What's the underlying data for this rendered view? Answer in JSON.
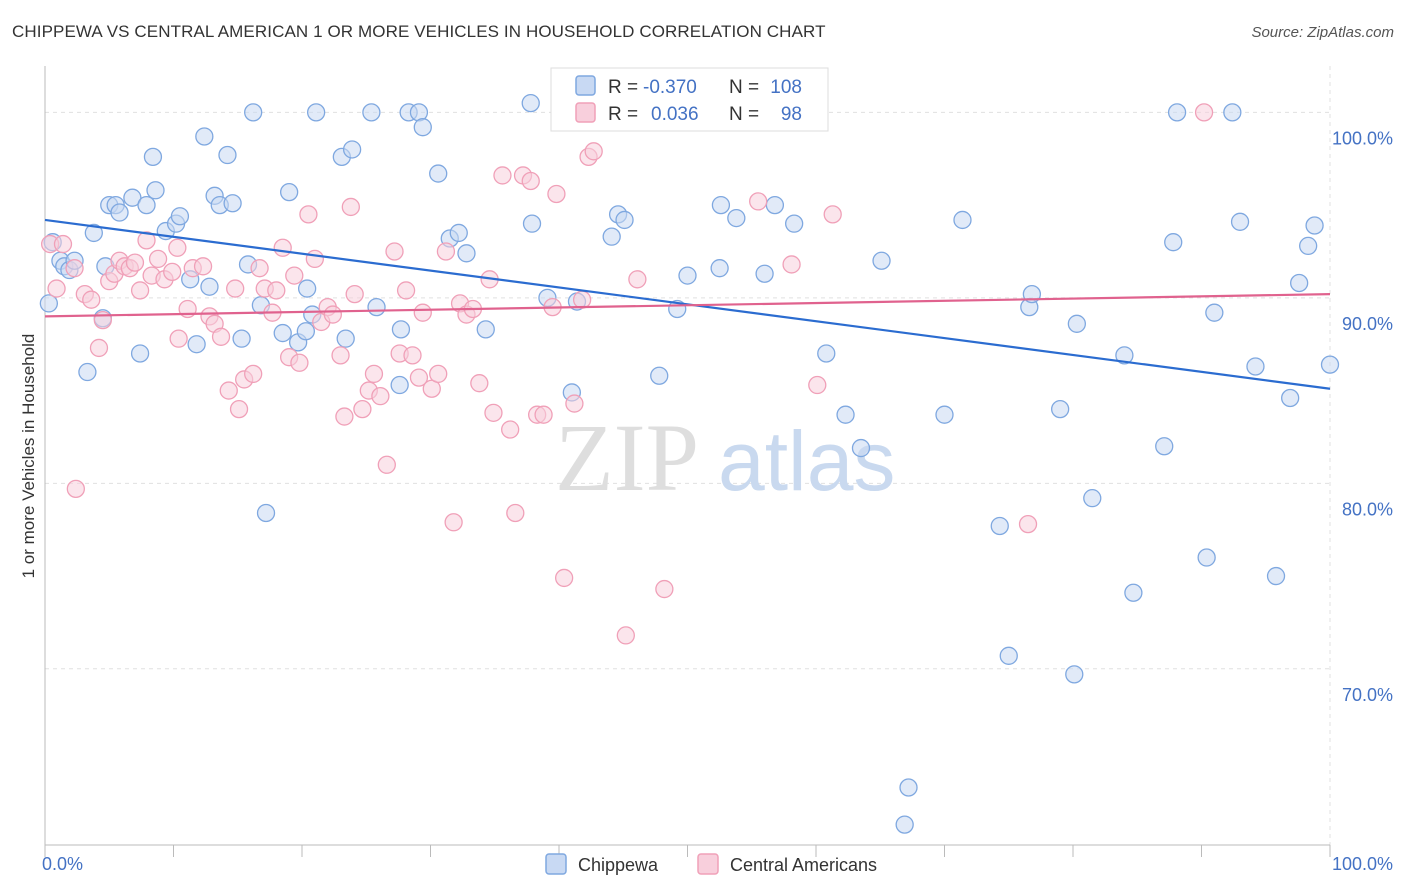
{
  "header": {
    "title": "CHIPPEWA VS CENTRAL AMERICAN 1 OR MORE VEHICLES IN HOUSEHOLD CORRELATION CHART",
    "source": "Source: ZipAtlas.com"
  },
  "watermark": {
    "zip": "ZIP",
    "atlas": "atlas"
  },
  "chart_data": {
    "type": "scatter",
    "title": "CHIPPEWA VS CENTRAL AMERICAN 1 OR MORE VEHICLES IN HOUSEHOLD CORRELATION CHART",
    "ylabel": "1 or more Vehicles in Household",
    "xlim": [
      0,
      100
    ],
    "ylim": [
      60.5,
      102.5
    ],
    "x_tick_labels": [
      "0.0%",
      "100.0%"
    ],
    "y_ticks": [
      {
        "value": 100,
        "label": "100.0%"
      },
      {
        "value": 90,
        "label": "90.0%"
      },
      {
        "value": 80,
        "label": "80.0%"
      },
      {
        "value": 70,
        "label": "70.0%"
      }
    ],
    "grid": true,
    "legend_position": "top-center",
    "legend": {
      "r_label": "R =",
      "n_label": "N =",
      "entries": [
        {
          "series": "Chippewa",
          "r": "-0.370",
          "n": "108"
        },
        {
          "series": "Central Americans",
          "r": "0.036",
          "n": "98"
        }
      ]
    },
    "series": [
      {
        "name": "Chippewa",
        "color": "#7fa8e0",
        "fill": "#c8d9f3",
        "line_color": "#2b6cd0",
        "trend": {
          "x": [
            0,
            100
          ],
          "y": [
            94.2,
            85.1
          ]
        },
        "points": [
          [
            0.3,
            89.7
          ],
          [
            0.6,
            93
          ],
          [
            1.2,
            92
          ],
          [
            1.5,
            91.7
          ],
          [
            1.9,
            91.5
          ],
          [
            2.3,
            92
          ],
          [
            3.3,
            86
          ],
          [
            3.8,
            93.5
          ],
          [
            4.5,
            88.9
          ],
          [
            4.7,
            91.7
          ],
          [
            5,
            95
          ],
          [
            5.5,
            95
          ],
          [
            5.8,
            94.6
          ],
          [
            6.8,
            95.4
          ],
          [
            7.4,
            87
          ],
          [
            7.9,
            95
          ],
          [
            8.4,
            97.6
          ],
          [
            8.6,
            95.8
          ],
          [
            9.4,
            93.6
          ],
          [
            10.2,
            94
          ],
          [
            10.5,
            94.4
          ],
          [
            11.3,
            91
          ],
          [
            11.8,
            87.5
          ],
          [
            12.4,
            98.7
          ],
          [
            12.8,
            90.6
          ],
          [
            13.2,
            95.5
          ],
          [
            13.6,
            95
          ],
          [
            14.2,
            97.7
          ],
          [
            14.6,
            95.1
          ],
          [
            15.3,
            87.8
          ],
          [
            15.8,
            91.8
          ],
          [
            16.2,
            100
          ],
          [
            16.8,
            89.6
          ],
          [
            17.2,
            78.4
          ],
          [
            18.5,
            88.1
          ],
          [
            19,
            95.7
          ],
          [
            19.7,
            87.6
          ],
          [
            20.3,
            88.2
          ],
          [
            20.4,
            90.5
          ],
          [
            20.8,
            89.1
          ],
          [
            21.1,
            100
          ],
          [
            23.1,
            97.6
          ],
          [
            23.4,
            87.8
          ],
          [
            23.9,
            98
          ],
          [
            25.4,
            100
          ],
          [
            25.8,
            89.5
          ],
          [
            27.6,
            85.3
          ],
          [
            27.7,
            88.3
          ],
          [
            28.3,
            100
          ],
          [
            29.1,
            100
          ],
          [
            29.4,
            99.2
          ],
          [
            30.6,
            96.7
          ],
          [
            31.5,
            93.2
          ],
          [
            32.2,
            93.5
          ],
          [
            32.8,
            92.4
          ],
          [
            34.3,
            88.3
          ],
          [
            37.9,
            94
          ],
          [
            39.1,
            90
          ],
          [
            41,
            84.9
          ],
          [
            41.4,
            89.8
          ],
          [
            43,
            99.8
          ],
          [
            44.1,
            93.3
          ],
          [
            44.6,
            94.5
          ],
          [
            45.1,
            94.2
          ],
          [
            47.8,
            85.8
          ],
          [
            49.2,
            89.4
          ],
          [
            50,
            91.2
          ],
          [
            52.5,
            91.6
          ],
          [
            52.6,
            95
          ],
          [
            53.8,
            94.3
          ],
          [
            56,
            91.3
          ],
          [
            56.8,
            95
          ],
          [
            58.3,
            94
          ],
          [
            59.6,
            100
          ],
          [
            60.8,
            87
          ],
          [
            62.3,
            83.7
          ],
          [
            63.5,
            81.9
          ],
          [
            65.1,
            92
          ],
          [
            66.9,
            61.6
          ],
          [
            67.2,
            63.6
          ],
          [
            70,
            83.7
          ],
          [
            71.4,
            94.2
          ],
          [
            74.3,
            77.7
          ],
          [
            75,
            70.7
          ],
          [
            76.6,
            89.5
          ],
          [
            76.8,
            90.2
          ],
          [
            79,
            84
          ],
          [
            80.1,
            69.7
          ],
          [
            80.3,
            88.6
          ],
          [
            81.5,
            79.2
          ],
          [
            84,
            86.9
          ],
          [
            84.7,
            74.1
          ],
          [
            87.1,
            82
          ],
          [
            87.8,
            93
          ],
          [
            88.1,
            100
          ],
          [
            90.4,
            76
          ],
          [
            91,
            89.2
          ],
          [
            92.4,
            100
          ],
          [
            93,
            94.1
          ],
          [
            94.2,
            86.3
          ],
          [
            95.8,
            75
          ],
          [
            96.9,
            84.6
          ],
          [
            97.6,
            90.8
          ],
          [
            98.3,
            92.8
          ],
          [
            98.8,
            93.9
          ],
          [
            100,
            86.4
          ],
          [
            37.8,
            100.5
          ],
          [
            44.8,
            100.8
          ]
        ]
      },
      {
        "name": "Central Americans",
        "color": "#f0a0b8",
        "fill": "#f8cfdc",
        "line_color": "#e0628e",
        "trend": {
          "x": [
            0,
            100
          ],
          "y": [
            89,
            90.2
          ]
        },
        "points": [
          [
            0.4,
            92.9
          ],
          [
            0.9,
            90.5
          ],
          [
            1.4,
            92.9
          ],
          [
            2.3,
            91.6
          ],
          [
            2.4,
            79.7
          ],
          [
            3.1,
            90.2
          ],
          [
            3.6,
            89.9
          ],
          [
            4.2,
            87.3
          ],
          [
            4.5,
            88.8
          ],
          [
            5,
            90.9
          ],
          [
            5.4,
            91.3
          ],
          [
            5.8,
            92
          ],
          [
            6.2,
            91.7
          ],
          [
            6.6,
            91.6
          ],
          [
            7,
            91.9
          ],
          [
            7.4,
            90.4
          ],
          [
            7.9,
            93.1
          ],
          [
            8.3,
            91.2
          ],
          [
            8.8,
            92.1
          ],
          [
            9.3,
            91
          ],
          [
            9.9,
            91.4
          ],
          [
            10.3,
            92.7
          ],
          [
            10.4,
            87.8
          ],
          [
            11.1,
            89.4
          ],
          [
            11.5,
            91.6
          ],
          [
            12.3,
            91.7
          ],
          [
            12.8,
            89
          ],
          [
            13.2,
            88.6
          ],
          [
            13.7,
            87.9
          ],
          [
            14.3,
            85
          ],
          [
            14.8,
            90.5
          ],
          [
            15.1,
            84
          ],
          [
            15.5,
            85.6
          ],
          [
            16.2,
            85.9
          ],
          [
            16.7,
            91.6
          ],
          [
            17.1,
            90.5
          ],
          [
            17.7,
            89.2
          ],
          [
            18,
            90.4
          ],
          [
            18.5,
            92.7
          ],
          [
            19,
            86.8
          ],
          [
            19.4,
            91.2
          ],
          [
            19.8,
            86.5
          ],
          [
            20.5,
            94.5
          ],
          [
            21,
            92.1
          ],
          [
            21.5,
            88.7
          ],
          [
            22,
            89.5
          ],
          [
            22.4,
            89.1
          ],
          [
            23,
            86.9
          ],
          [
            23.3,
            83.6
          ],
          [
            23.8,
            94.9
          ],
          [
            24.1,
            90.2
          ],
          [
            24.7,
            84
          ],
          [
            25.2,
            85
          ],
          [
            25.6,
            85.9
          ],
          [
            26.1,
            84.7
          ],
          [
            26.6,
            81
          ],
          [
            27.2,
            92.5
          ],
          [
            27.6,
            87
          ],
          [
            28.1,
            90.4
          ],
          [
            28.6,
            86.9
          ],
          [
            29.1,
            85.7
          ],
          [
            29.4,
            89.2
          ],
          [
            30.1,
            85.1
          ],
          [
            30.6,
            85.9
          ],
          [
            31.2,
            92.5
          ],
          [
            31.8,
            77.9
          ],
          [
            32.3,
            89.7
          ],
          [
            32.8,
            89.1
          ],
          [
            33.3,
            89.4
          ],
          [
            33.8,
            85.4
          ],
          [
            34.6,
            91
          ],
          [
            34.9,
            83.8
          ],
          [
            35.6,
            96.6
          ],
          [
            36.2,
            82.9
          ],
          [
            36.6,
            78.4
          ],
          [
            37.2,
            96.6
          ],
          [
            37.8,
            96.3
          ],
          [
            38.3,
            83.7
          ],
          [
            38.8,
            83.7
          ],
          [
            39.5,
            89.5
          ],
          [
            39.8,
            95.6
          ],
          [
            40.4,
            74.9
          ],
          [
            41.2,
            84.3
          ],
          [
            41.8,
            89.9
          ],
          [
            42.3,
            97.6
          ],
          [
            42.7,
            97.9
          ],
          [
            45.2,
            71.8
          ],
          [
            46.1,
            91
          ],
          [
            48.2,
            74.3
          ],
          [
            48.5,
            100
          ],
          [
            55.5,
            95.2
          ],
          [
            58.1,
            91.8
          ],
          [
            60.1,
            85.3
          ],
          [
            61.3,
            94.5
          ],
          [
            76.5,
            77.8
          ],
          [
            90.2,
            100
          ],
          [
            44,
            100
          ],
          [
            56.4,
            100
          ]
        ]
      }
    ]
  }
}
